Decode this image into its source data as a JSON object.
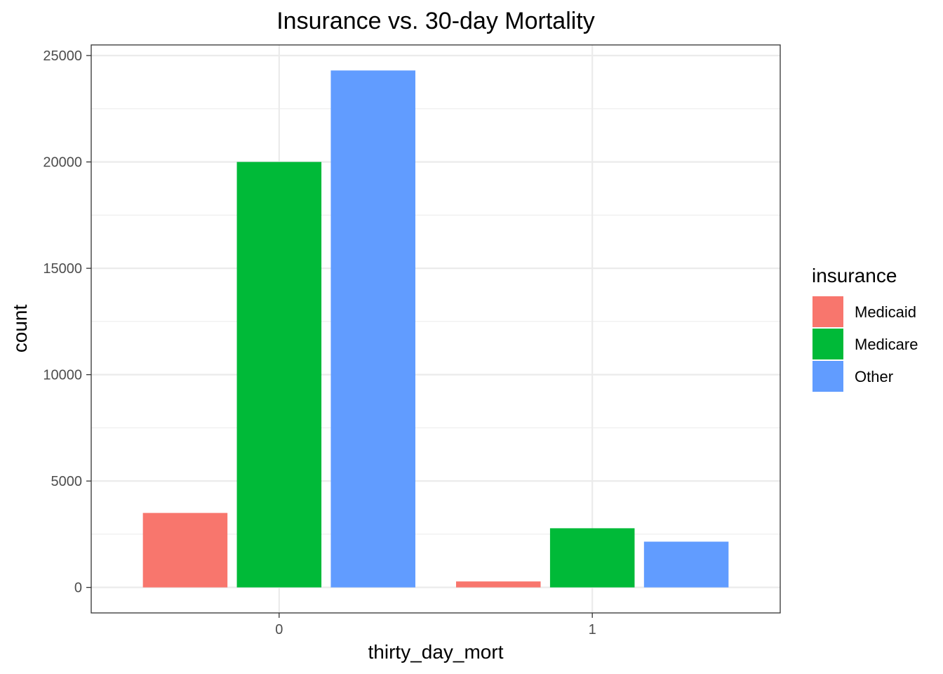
{
  "chart_data": {
    "type": "bar",
    "title": "Insurance vs. 30-day Mortality",
    "xlabel": "thirty_day_mort",
    "ylabel": "count",
    "categories": [
      "0",
      "1"
    ],
    "series": [
      {
        "name": "Medicaid",
        "color": "#F8766D",
        "values": [
          3500,
          280
        ]
      },
      {
        "name": "Medicare",
        "color": "#00BA38",
        "values": [
          20000,
          2780
        ]
      },
      {
        "name": "Other",
        "color": "#619CFF",
        "values": [
          24300,
          2150
        ]
      }
    ],
    "ylim": [
      -1200,
      25500
    ],
    "yticks": [
      0,
      5000,
      10000,
      15000,
      20000,
      25000
    ],
    "ytick_labels": [
      "0",
      "5000",
      "10000",
      "15000",
      "20000",
      "25000"
    ],
    "legend": {
      "title": "insurance",
      "position": "right"
    },
    "grid": true
  }
}
